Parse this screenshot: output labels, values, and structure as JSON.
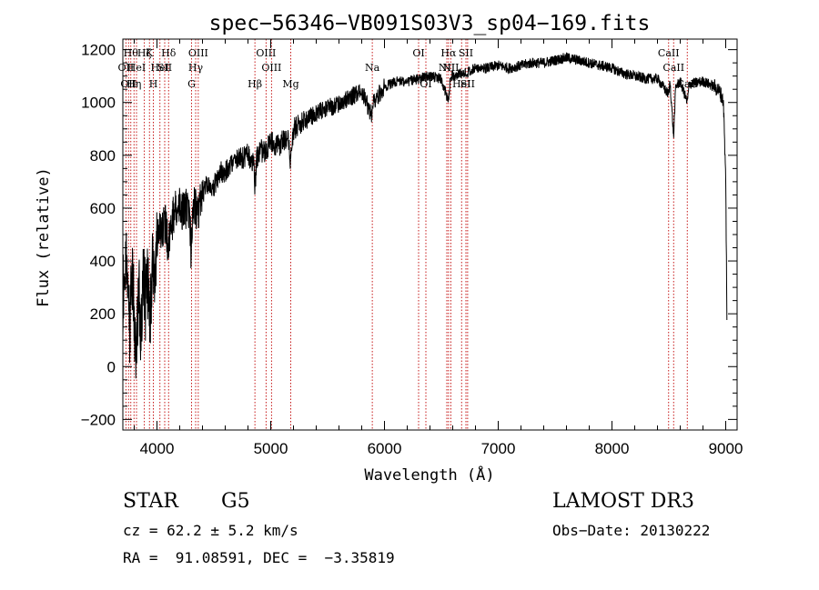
{
  "chart_data": {
    "type": "line",
    "title": "spec−56346−VB091S03V3_sp04−169.fits",
    "xlabel": "Wavelength (Å)",
    "ylabel": "Flux (relative)",
    "xlim": [
      3700,
      9100
    ],
    "ylim": [
      -240,
      1240
    ],
    "xticks": [
      4000,
      5000,
      6000,
      7000,
      8000,
      9000
    ],
    "yticks": [
      -200,
      0,
      200,
      400,
      600,
      800,
      1000,
      1200
    ],
    "x_minor_step": 200,
    "y_minor_step": 50,
    "series": [
      {
        "name": "spectrum",
        "anchors": [
          [
            3700,
            250
          ],
          [
            3720,
            420
          ],
          [
            3740,
            300
          ],
          [
            3760,
            120
          ],
          [
            3780,
            380
          ],
          [
            3800,
            180
          ],
          [
            3820,
            60
          ],
          [
            3840,
            300
          ],
          [
            3860,
            120
          ],
          [
            3880,
            360
          ],
          [
            3900,
            230
          ],
          [
            3920,
            330
          ],
          [
            3940,
            200
          ],
          [
            3960,
            410
          ],
          [
            3980,
            300
          ],
          [
            4000,
            470
          ],
          [
            4020,
            550
          ],
          [
            4040,
            480
          ],
          [
            4060,
            560
          ],
          [
            4080,
            520
          ],
          [
            4100,
            440
          ],
          [
            4120,
            520
          ],
          [
            4140,
            560
          ],
          [
            4160,
            590
          ],
          [
            4180,
            560
          ],
          [
            4200,
            610
          ],
          [
            4230,
            580
          ],
          [
            4260,
            600
          ],
          [
            4290,
            560
          ],
          [
            4300,
            390
          ],
          [
            4310,
            540
          ],
          [
            4330,
            610
          ],
          [
            4360,
            590
          ],
          [
            4400,
            660
          ],
          [
            4450,
            690
          ],
          [
            4500,
            680
          ],
          [
            4550,
            730
          ],
          [
            4600,
            740
          ],
          [
            4650,
            760
          ],
          [
            4700,
            780
          ],
          [
            4750,
            790
          ],
          [
            4800,
            800
          ],
          [
            4850,
            760
          ],
          [
            4862,
            680
          ],
          [
            4875,
            780
          ],
          [
            4900,
            820
          ],
          [
            4950,
            810
          ],
          [
            5000,
            850
          ],
          [
            5050,
            830
          ],
          [
            5100,
            850
          ],
          [
            5150,
            880
          ],
          [
            5175,
            780
          ],
          [
            5200,
            900
          ],
          [
            5300,
            930
          ],
          [
            5400,
            960
          ],
          [
            5500,
            980
          ],
          [
            5600,
            990
          ],
          [
            5700,
            1020
          ],
          [
            5800,
            1040
          ],
          [
            5890,
            950
          ],
          [
            5900,
            1000
          ],
          [
            6000,
            1060
          ],
          [
            6100,
            1080
          ],
          [
            6200,
            1080
          ],
          [
            6300,
            1090
          ],
          [
            6400,
            1100
          ],
          [
            6500,
            1090
          ],
          [
            6563,
            1000
          ],
          [
            6580,
            1100
          ],
          [
            6700,
            1110
          ],
          [
            6800,
            1130
          ],
          [
            6900,
            1130
          ],
          [
            7000,
            1140
          ],
          [
            7100,
            1130
          ],
          [
            7200,
            1140
          ],
          [
            7300,
            1150
          ],
          [
            7400,
            1150
          ],
          [
            7500,
            1160
          ],
          [
            7600,
            1170
          ],
          [
            7700,
            1160
          ],
          [
            7800,
            1150
          ],
          [
            7900,
            1140
          ],
          [
            8000,
            1130
          ],
          [
            8100,
            1110
          ],
          [
            8200,
            1100
          ],
          [
            8300,
            1090
          ],
          [
            8400,
            1090
          ],
          [
            8498,
            1030
          ],
          [
            8510,
            1080
          ],
          [
            8542,
            870
          ],
          [
            8560,
            1060
          ],
          [
            8600,
            1080
          ],
          [
            8662,
            1000
          ],
          [
            8680,
            1070
          ],
          [
            8800,
            1080
          ],
          [
            8900,
            1060
          ],
          [
            8950,
            1040
          ],
          [
            8980,
            1000
          ],
          [
            9000,
            700
          ],
          [
            9010,
            200
          ]
        ]
      }
    ],
    "line_labels": [
      {
        "wl": 3727,
        "label": "OII",
        "row": 2
      },
      {
        "wl": 3750,
        "label": "OII",
        "row": 3
      },
      {
        "wl": 3770,
        "label": "Hθ",
        "row": 1
      },
      {
        "wl": 3798,
        "label": "Hη",
        "row": 3
      },
      {
        "wl": 3820,
        "label": "HeI",
        "row": 2
      },
      {
        "wl": 3889,
        "label": "Hζ",
        "row": 1
      },
      {
        "wl": 3934,
        "label": "K",
        "row": 1
      },
      {
        "wl": 3968,
        "label": "H",
        "row": 3
      },
      {
        "wl": 4026,
        "label": "HeI",
        "row": 2
      },
      {
        "wl": 4068,
        "label": "SII",
        "row": 2
      },
      {
        "wl": 4102,
        "label": "Hδ",
        "row": 1
      },
      {
        "wl": 4304,
        "label": "G",
        "row": 3
      },
      {
        "wl": 4340,
        "label": "Hγ",
        "row": 2
      },
      {
        "wl": 4363,
        "label": "OIII",
        "row": 1
      },
      {
        "wl": 4861,
        "label": "Hβ",
        "row": 3
      },
      {
        "wl": 4959,
        "label": "OIII",
        "row": 1
      },
      {
        "wl": 5007,
        "label": "OIII",
        "row": 2
      },
      {
        "wl": 5176,
        "label": "Mg",
        "row": 3
      },
      {
        "wl": 5893,
        "label": "Na",
        "row": 2
      },
      {
        "wl": 6300,
        "label": "OI",
        "row": 1
      },
      {
        "wl": 6364,
        "label": "OI",
        "row": 3
      },
      {
        "wl": 6548,
        "label": "NII",
        "row": 2
      },
      {
        "wl": 6563,
        "label": "Hα",
        "row": 1
      },
      {
        "wl": 6583,
        "label": "NII",
        "row": 2
      },
      {
        "wl": 6678,
        "label": "HeI",
        "row": 3
      },
      {
        "wl": 6716,
        "label": "SII",
        "row": 1
      },
      {
        "wl": 6731,
        "label": "SII",
        "row": 3
      },
      {
        "wl": 8498,
        "label": "CaII",
        "row": 1
      },
      {
        "wl": 8542,
        "label": "CaII",
        "row": 2
      },
      {
        "wl": 8662,
        "label": "CaII",
        "row": 3
      }
    ]
  },
  "info": {
    "class": "STAR",
    "subclass": "G5",
    "survey": "LAMOST DR3",
    "cz": "cz = 62.2 ± 5.2 km/s",
    "obs_date": "Obs−Date: 20130222",
    "coords": "RA =  91.08591, DEC =  −3.35819"
  }
}
